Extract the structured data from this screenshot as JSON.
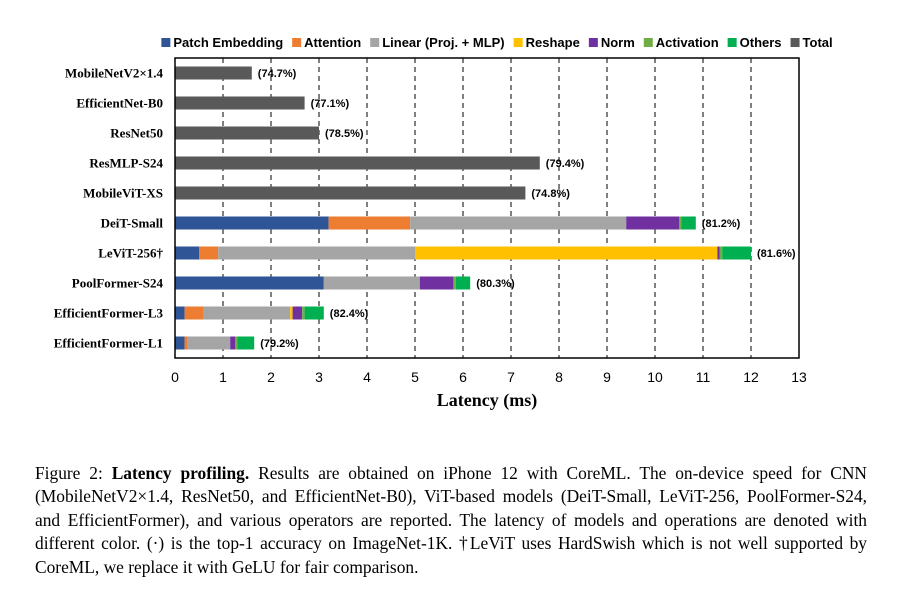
{
  "chart_data": {
    "type": "bar",
    "orientation": "horizontal",
    "stacked": true,
    "xlabel": "Latency (ms)",
    "xlim": [
      0,
      13
    ],
    "xticks": [
      0,
      1,
      2,
      3,
      4,
      5,
      6,
      7,
      8,
      9,
      10,
      11,
      12,
      13
    ],
    "grid": "vertical-dashed",
    "legend_position": "top",
    "legend": [
      {
        "name": "Patch Embedding",
        "color": "#2F5597"
      },
      {
        "name": "Attention",
        "color": "#ED7D31"
      },
      {
        "name": "Linear (Proj. + MLP)",
        "color": "#A5A5A5"
      },
      {
        "name": "Reshape",
        "color": "#FFC000"
      },
      {
        "name": "Norm",
        "color": "#7030A0"
      },
      {
        "name": "Activation",
        "color": "#70AD47"
      },
      {
        "name": "Others",
        "color": "#00B050"
      },
      {
        "name": "Total",
        "color": "#595959"
      }
    ],
    "categories": [
      "MobileNetV2×1.4",
      "EfficientNet-B0",
      "ResNet50",
      "ResMLP-S24",
      "MobileViT-XS",
      "DeiT-Small",
      "LeViT-256†",
      "PoolFormer-S24",
      "EfficientFormer-L3",
      "EfficientFormer-L1"
    ],
    "accuracy_labels": [
      "(74.7%)",
      "(77.1%)",
      "(78.5%)",
      "(79.4%)",
      "(74.8%)",
      "(81.2%)",
      "(81.6%)",
      "(80.3%)",
      "(82.4%)",
      "(79.2%)"
    ],
    "segments": [
      [
        {
          "series": "Total",
          "value": 1.6
        }
      ],
      [
        {
          "series": "Total",
          "value": 2.7
        }
      ],
      [
        {
          "series": "Total",
          "value": 3.0
        }
      ],
      [
        {
          "series": "Total",
          "value": 7.6
        }
      ],
      [
        {
          "series": "Total",
          "value": 7.3
        }
      ],
      [
        {
          "series": "Patch Embedding",
          "value": 3.2
        },
        {
          "series": "Attention",
          "value": 1.7
        },
        {
          "series": "Linear (Proj. + MLP)",
          "value": 4.5
        },
        {
          "series": "Norm",
          "value": 1.1
        },
        {
          "series": "Activation",
          "value": 0.05
        },
        {
          "series": "Others",
          "value": 0.3
        }
      ],
      [
        {
          "series": "Patch Embedding",
          "value": 0.5
        },
        {
          "series": "Attention",
          "value": 0.4
        },
        {
          "series": "Linear (Proj. + MLP)",
          "value": 4.1
        },
        {
          "series": "Reshape",
          "value": 6.3
        },
        {
          "series": "Norm",
          "value": 0.05
        },
        {
          "series": "Activation",
          "value": 0.05
        },
        {
          "series": "Others",
          "value": 0.6
        }
      ],
      [
        {
          "series": "Patch Embedding",
          "value": 3.1
        },
        {
          "series": "Linear (Proj. + MLP)",
          "value": 2.0
        },
        {
          "series": "Norm",
          "value": 0.7
        },
        {
          "series": "Activation",
          "value": 0.05
        },
        {
          "series": "Others",
          "value": 0.3
        }
      ],
      [
        {
          "series": "Patch Embedding",
          "value": 0.2
        },
        {
          "series": "Attention",
          "value": 0.4
        },
        {
          "series": "Linear (Proj. + MLP)",
          "value": 1.8
        },
        {
          "series": "Reshape",
          "value": 0.05
        },
        {
          "series": "Norm",
          "value": 0.2
        },
        {
          "series": "Activation",
          "value": 0.05
        },
        {
          "series": "Others",
          "value": 0.4
        }
      ],
      [
        {
          "series": "Patch Embedding",
          "value": 0.2
        },
        {
          "series": "Attention",
          "value": 0.05
        },
        {
          "series": "Linear (Proj. + MLP)",
          "value": 0.9
        },
        {
          "series": "Norm",
          "value": 0.1
        },
        {
          "series": "Activation",
          "value": 0.05
        },
        {
          "series": "Others",
          "value": 0.35
        }
      ]
    ]
  },
  "caption": {
    "label": "Figure 2:",
    "title": "Latency profiling.",
    "body": "Results are obtained on iPhone 12 with CoreML. The on-device speed for CNN (MobileNetV2×1.4, ResNet50, and EfficientNet-B0), ViT-based models (DeiT-Small, LeViT-256, PoolFormer-S24, and EfficientFormer), and various operators are reported. The latency of models and operations are denoted with different color. (·) is the top-1 accuracy on ImageNet-1K. †LeViT uses HardSwish which is not well supported by CoreML, we replace it with GeLU for fair comparison."
  }
}
